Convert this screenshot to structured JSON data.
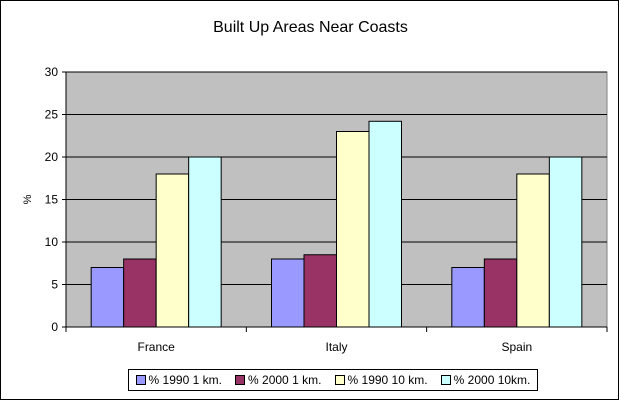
{
  "chart_data": {
    "type": "bar",
    "title": "Built Up Areas Near Coasts",
    "xlabel": "",
    "ylabel": "%",
    "ylim": [
      0,
      30
    ],
    "yticks": [
      0,
      5,
      10,
      15,
      20,
      25,
      30
    ],
    "ytick_labels": [
      "0",
      "5",
      "10",
      "15",
      "20",
      "25",
      "30"
    ],
    "categories": [
      "France",
      "Italy",
      "Spain"
    ],
    "series": [
      {
        "name": "% 1990 1 km.",
        "color": "#9999ff",
        "values": [
          7,
          8,
          7
        ]
      },
      {
        "name": "% 2000 1 km.",
        "color": "#993366",
        "values": [
          8,
          8.5,
          8
        ]
      },
      {
        "name": "% 1990 10 km.",
        "color": "#ffffcc",
        "values": [
          18,
          23,
          18
        ]
      },
      {
        "name": "% 2000 10km.",
        "color": "#ccffff",
        "values": [
          20,
          24.2,
          20
        ]
      }
    ],
    "plot_background": "#c0c0c0",
    "grid": true,
    "legend_position": "bottom"
  }
}
